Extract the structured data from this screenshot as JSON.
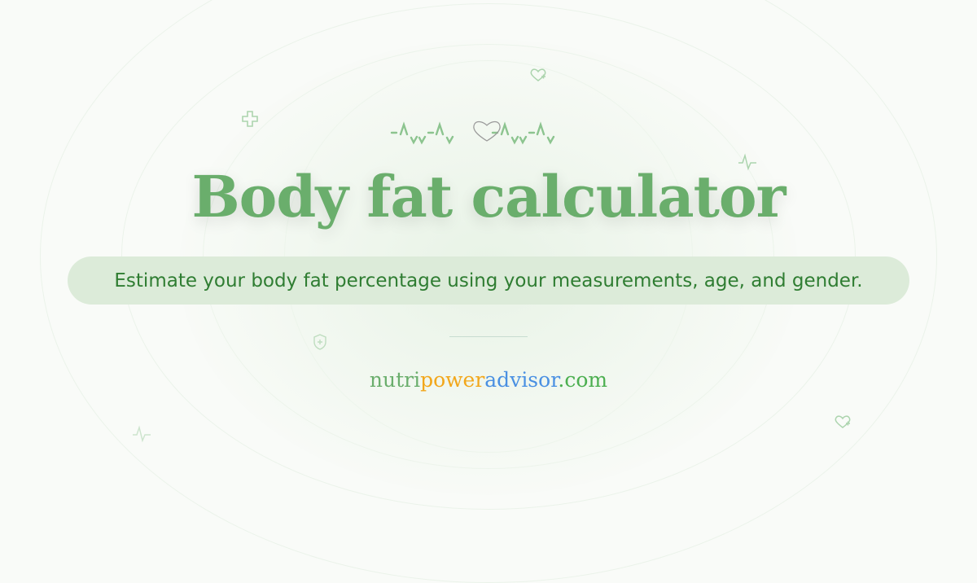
{
  "title": "Body fat calculator",
  "subtitle": "Estimate your body fat percentage using your measurements, age, and gender.",
  "brand": {
    "parts": [
      {
        "text": "nutri",
        "color": "#6aae6c"
      },
      {
        "text": "power",
        "color": "#f2a71b"
      },
      {
        "text": "advisor",
        "color": "#4a90e2"
      },
      {
        "text": ".com",
        "color": "#4caf50"
      }
    ]
  },
  "colors": {
    "accent": "#6aae6c",
    "pill": "#dcebd9",
    "subtitle": "#2f7d32"
  },
  "icons": [
    "heartbeat-line-icon",
    "heart-outline-icon",
    "plus-cross-icon",
    "heart-plus-icon",
    "pulse-icon",
    "shield-plus-icon"
  ]
}
